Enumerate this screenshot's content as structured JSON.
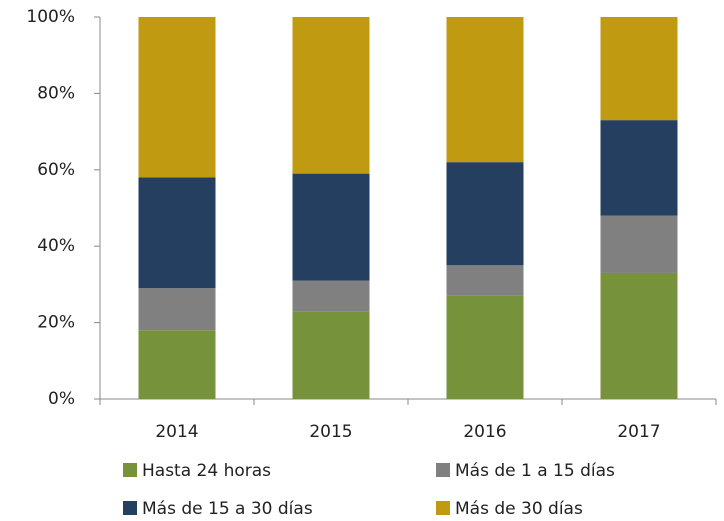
{
  "chart_data": {
    "type": "stacked_bar",
    "categories": [
      "2014",
      "2015",
      "2016",
      "2017"
    ],
    "series": [
      {
        "name": "Hasta 24 horas",
        "color": "#76933c",
        "values": [
          18,
          23,
          27,
          33
        ]
      },
      {
        "name": "Más de 1 a 15 días",
        "color": "#808080",
        "values": [
          11,
          8,
          8,
          15
        ]
      },
      {
        "name": "Más de 15 a 30 días",
        "color": "#243f60",
        "values": [
          29,
          28,
          27,
          25
        ]
      },
      {
        "name": "Más de 30 días",
        "color": "#c09a10",
        "values": [
          42,
          41,
          38,
          27
        ]
      }
    ],
    "ylim": [
      0,
      100
    ],
    "yticks": [
      {
        "value": 0,
        "label": "0%"
      },
      {
        "value": 20,
        "label": "20%"
      },
      {
        "value": 40,
        "label": "40%"
      },
      {
        "value": 60,
        "label": "60%"
      },
      {
        "value": 80,
        "label": "80%"
      },
      {
        "value": 100,
        "label": "100%"
      }
    ],
    "grid": false
  }
}
